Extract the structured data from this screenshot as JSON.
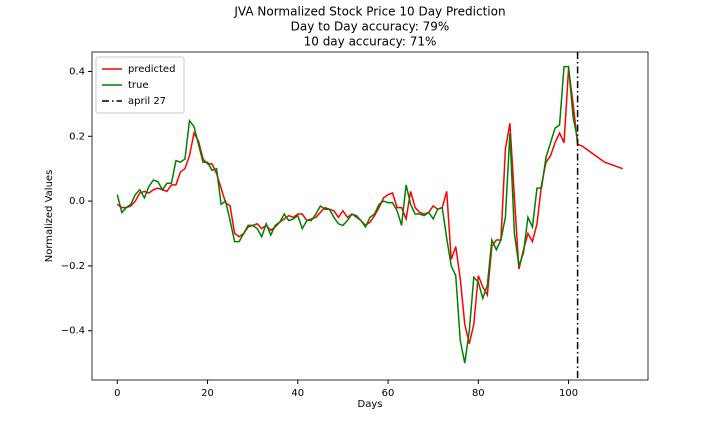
{
  "chart_data": {
    "type": "line",
    "title": "JVA Normalized Stock Price 10 Day Prediction",
    "subtitles": [
      "Day to Day accuracy: 79%",
      "10 day accuracy: 71%"
    ],
    "x_label": "Days",
    "y_label": "Normalized Values",
    "x": [
      0,
      1,
      2,
      3,
      4,
      5,
      6,
      7,
      8,
      9,
      10,
      11,
      12,
      13,
      14,
      15,
      16,
      17,
      18,
      19,
      20,
      21,
      22,
      23,
      24,
      25,
      26,
      27,
      28,
      29,
      30,
      31,
      32,
      33,
      34,
      35,
      36,
      37,
      38,
      39,
      40,
      41,
      42,
      43,
      44,
      45,
      46,
      47,
      48,
      49,
      50,
      51,
      52,
      53,
      54,
      55,
      56,
      57,
      58,
      59,
      60,
      61,
      62,
      63,
      64,
      65,
      66,
      67,
      68,
      69,
      70,
      71,
      72,
      73,
      74,
      75,
      76,
      77,
      78,
      79,
      80,
      81,
      82,
      83,
      84,
      85,
      86,
      87,
      88,
      89,
      90,
      91,
      92,
      93,
      94,
      95,
      96,
      97,
      98,
      99,
      100,
      101,
      102,
      103,
      104,
      105,
      106,
      107,
      108,
      109,
      110,
      111,
      112
    ],
    "series": [
      {
        "name": "predicted",
        "color": "#ff0000",
        "values": [
          -0.01,
          -0.02,
          -0.02,
          -0.015,
          0.0,
          0.025,
          0.03,
          0.025,
          0.035,
          0.04,
          0.035,
          0.03,
          0.05,
          0.05,
          0.09,
          0.1,
          0.14,
          0.21,
          0.185,
          0.13,
          0.115,
          0.115,
          0.085,
          0.04,
          -0.005,
          -0.015,
          -0.1,
          -0.11,
          -0.1,
          -0.08,
          -0.075,
          -0.07,
          -0.085,
          -0.075,
          -0.09,
          -0.08,
          -0.065,
          -0.055,
          -0.045,
          -0.05,
          -0.04,
          -0.04,
          -0.06,
          -0.055,
          -0.05,
          -0.035,
          -0.02,
          -0.025,
          -0.03,
          -0.05,
          -0.03,
          -0.05,
          -0.04,
          -0.05,
          -0.06,
          -0.075,
          -0.065,
          -0.045,
          -0.02,
          0.01,
          0.02,
          0.025,
          -0.02,
          -0.02,
          -0.055,
          0.03,
          -0.02,
          -0.035,
          -0.04,
          -0.035,
          -0.015,
          -0.025,
          -0.02,
          0.03,
          -0.18,
          -0.14,
          -0.24,
          -0.38,
          -0.44,
          -0.38,
          -0.23,
          -0.265,
          -0.29,
          -0.14,
          -0.12,
          -0.12,
          0.16,
          0.24,
          0.01,
          -0.21,
          -0.15,
          -0.1,
          -0.125,
          -0.07,
          0.05,
          0.12,
          0.14,
          0.18,
          0.21,
          0.18,
          0.41,
          0.3,
          0.175,
          0.17,
          0.16,
          0.15,
          0.14,
          0.13,
          0.12,
          0.115,
          0.11,
          0.105,
          0.1
        ]
      },
      {
        "name": "true",
        "color": "#008000",
        "values": [
          0.02,
          -0.035,
          -0.02,
          -0.01,
          0.02,
          0.035,
          0.01,
          0.045,
          0.065,
          0.06,
          0.035,
          0.055,
          0.055,
          0.125,
          0.12,
          0.13,
          0.248,
          0.23,
          0.175,
          0.12,
          0.12,
          0.095,
          0.1,
          -0.01,
          0.0,
          -0.06,
          -0.125,
          -0.125,
          -0.1,
          -0.075,
          -0.075,
          -0.085,
          -0.11,
          -0.07,
          -0.105,
          -0.075,
          -0.065,
          -0.04,
          -0.06,
          -0.055,
          -0.045,
          -0.085,
          -0.06,
          -0.06,
          -0.04,
          -0.015,
          -0.025,
          -0.025,
          -0.05,
          -0.07,
          -0.075,
          -0.06,
          -0.04,
          -0.045,
          -0.06,
          -0.08,
          -0.05,
          -0.04,
          -0.01,
          0.0,
          -0.005,
          -0.005,
          -0.03,
          -0.075,
          0.05,
          -0.01,
          -0.04,
          -0.04,
          -0.045,
          -0.035,
          -0.055,
          -0.025,
          -0.02,
          -0.115,
          -0.2,
          -0.23,
          -0.43,
          -0.5,
          -0.4,
          -0.235,
          -0.25,
          -0.3,
          -0.26,
          -0.12,
          -0.15,
          -0.12,
          -0.05,
          0.21,
          -0.1,
          -0.2,
          -0.16,
          -0.05,
          -0.08,
          0.04,
          0.04,
          0.135,
          0.18,
          0.225,
          0.235,
          0.415,
          0.415,
          0.26,
          0.19,
          null,
          null,
          null,
          null,
          null,
          null,
          null,
          null,
          null,
          null
        ]
      }
    ],
    "vlines": [
      {
        "x": 102,
        "label": "april 27",
        "color": "#000000",
        "style": "dash-dot"
      }
    ],
    "xlim": [
      -5.6,
      117.6
    ],
    "ylim": [
      -0.552,
      0.46
    ],
    "xticks": [
      0,
      20,
      40,
      60,
      80,
      100
    ],
    "yticks": [
      {
        "value": -0.4,
        "label": "−0.4"
      },
      {
        "value": -0.2,
        "label": "−0.2"
      },
      {
        "value": 0,
        "label": "0.0"
      },
      0.2,
      0.4
    ],
    "grid": false,
    "legend": "upper left"
  }
}
